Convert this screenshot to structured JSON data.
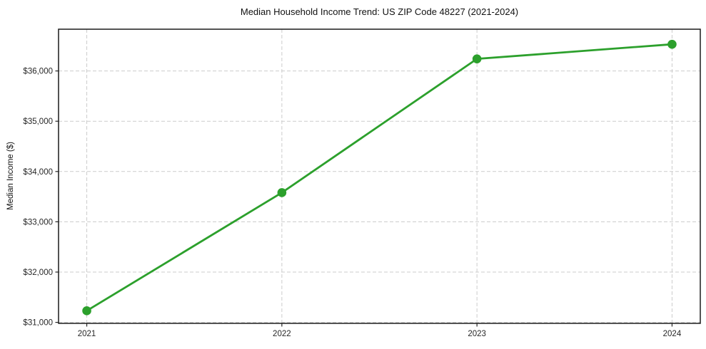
{
  "figure": {
    "background": "#ffffff"
  },
  "chart_data": {
    "type": "line",
    "title": "Median Household Income Trend: US ZIP Code 48227 (2021-2024)",
    "xlabel": "",
    "ylabel": "Median Income ($)",
    "categories": [
      "2021",
      "2022",
      "2023",
      "2024"
    ],
    "series": [
      {
        "name": "Median Household Income",
        "color": "#2ca02c",
        "marker": "circle",
        "values": [
          31230,
          33580,
          36240,
          36530
        ]
      }
    ],
    "yticks": [
      31000,
      32000,
      33000,
      34000,
      35000,
      36000
    ],
    "ytick_labels": [
      "$31,000",
      "$32,000",
      "$33,000",
      "$34,000",
      "$35,000",
      "$36,000"
    ],
    "ylim": [
      30980,
      36830
    ],
    "grid": true,
    "grid_style": "dashed",
    "grid_color": "#cccccc",
    "axis_color": "#1a1a1a",
    "tick_color": "#262626",
    "legend_position": "none"
  }
}
